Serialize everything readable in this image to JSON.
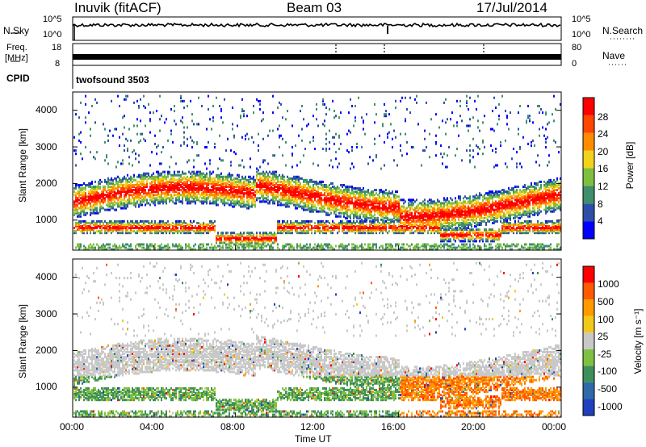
{
  "header": {
    "left": "Inuvik (fitACF)",
    "center": "Beam 03",
    "right": "17/Jul/2014"
  },
  "noise_panel": {
    "left_label": "N.Sky",
    "right_label": "N.Search",
    "left_ticks": [
      "10^5",
      "10^0"
    ],
    "right_ticks": [
      "10^5",
      "10^0"
    ]
  },
  "freq_panel": {
    "left_label_line1": "Freq.",
    "left_label_line2": "[MHz]",
    "right_label": "Nave",
    "left_ticks": [
      "18",
      "8"
    ],
    "right_ticks": [
      "80",
      "0"
    ]
  },
  "cpid": {
    "label": "CPID",
    "value": "twofsound 3503"
  },
  "power_panel": {
    "ylabel": "Slant Range [km]",
    "colorbar_label": "Power [dB]",
    "colorbar_ticks": [
      "28",
      "24",
      "20",
      "16",
      "12",
      "8",
      "4"
    ],
    "colors": [
      "#0000ff",
      "#2e4fa8",
      "#3f8f6a",
      "#7fbf3f",
      "#f2d21b",
      "#ff8c00",
      "#ff4500",
      "#ff0000"
    ]
  },
  "velocity_panel": {
    "ylabel": "Slant Range [km]",
    "colorbar_label": "Velocity [m s⁻¹]",
    "colorbar_ticks": [
      "1000",
      "500",
      "100",
      "25",
      "-25",
      "-100",
      "-500",
      "-1000"
    ],
    "colors": [
      "#2040c0",
      "#2e6aa8",
      "#3f8f5a",
      "#7fc040",
      "#c8c8c8",
      "#f2c81b",
      "#ff9a00",
      "#ff5a00",
      "#ff0000"
    ]
  },
  "x_axis": {
    "label": "Time UT",
    "ticks": [
      "00:00",
      "04:00",
      "08:00",
      "12:00",
      "16:00",
      "20:00",
      "00:00"
    ]
  },
  "chart_data": [
    {
      "type": "line",
      "title": "N.Sky / N.Search",
      "xlabel": "Time UT",
      "x": [
        "00:00",
        "04:00",
        "08:00",
        "12:00",
        "16:00",
        "20:00",
        "00:00"
      ],
      "y_scale": "log",
      "ylim": [
        1,
        100000
      ],
      "series": [
        {
          "name": "N.Sky",
          "values": [
            30000,
            32000,
            31000,
            33000,
            30000,
            35000,
            36000
          ]
        }
      ]
    },
    {
      "type": "line",
      "title": "Freq. / Nave",
      "xlabel": "Time UT",
      "ylim": [
        8,
        18
      ],
      "x": [
        "00:00",
        "04:00",
        "08:00",
        "12:00",
        "16:00",
        "20:00",
        "00:00"
      ],
      "series": [
        {
          "name": "Freq.",
          "values": [
            10.5,
            10.5,
            10.5,
            10.5,
            10.5,
            10.5,
            10.5
          ]
        }
      ]
    },
    {
      "type": "heatmap",
      "title": "Power",
      "xlabel": "Time UT",
      "ylabel": "Slant Range [km]",
      "xlim": [
        0,
        24
      ],
      "ylim": [
        180,
        4500
      ],
      "colorbar": "Power [dB]",
      "colorbar_ticks": [
        4,
        8,
        12,
        16,
        20,
        24,
        28
      ]
    },
    {
      "type": "heatmap",
      "title": "Velocity",
      "xlabel": "Time UT",
      "ylabel": "Slant Range [km]",
      "xlim": [
        0,
        24
      ],
      "ylim": [
        180,
        4500
      ],
      "colorbar": "Velocity [m s⁻¹]",
      "colorbar_ticks": [
        -1000,
        -500,
        -100,
        -25,
        25,
        100,
        500,
        1000
      ]
    }
  ]
}
